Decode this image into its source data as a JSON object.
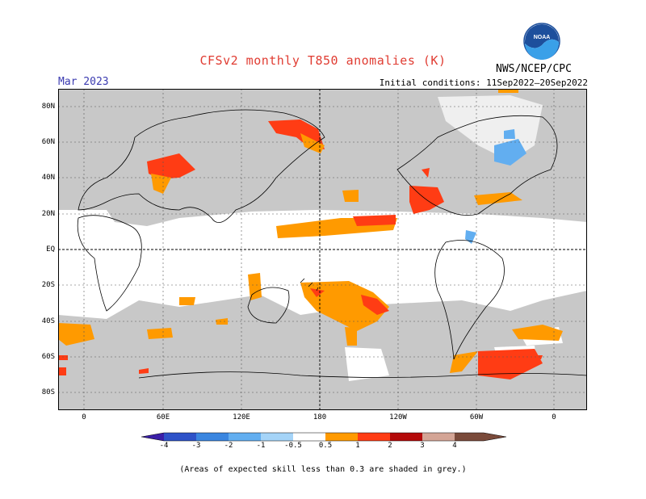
{
  "header": {
    "title": "CFSv2 monthly T850 anomalies (K)",
    "month": "Mar 2023",
    "initial_conditions": "Initial conditions: 11Sep2022–20Sep2022",
    "agency": "NWS/NCEP/CPC",
    "logo_text": "NOAA"
  },
  "axes": {
    "lat_labels": [
      "80N",
      "60N",
      "40N",
      "20N",
      "EQ",
      "20S",
      "40S",
      "60S",
      "80S"
    ],
    "lon_labels": [
      "0",
      "60E",
      "120E",
      "180",
      "120W",
      "60W",
      "0"
    ]
  },
  "colorbar": {
    "labels": [
      "-4",
      "-3",
      "-2",
      "-1",
      "-0.5",
      "0.5",
      "1",
      "2",
      "3",
      "4"
    ],
    "colors": [
      "#3b1fa8",
      "#2e52c8",
      "#3a86e0",
      "#62aef0",
      "#a5d4f8",
      "#ffffff",
      "#ff9a00",
      "#ff3c14",
      "#b40a0a",
      "#d4a596",
      "#7a4a3a"
    ]
  },
  "legend_note": "(Areas of expected skill less than 0.3 are shaded in grey.)",
  "colors": {
    "grey": "#c8c8c8",
    "orange": "#ff9a00",
    "red": "#ff3c14",
    "darkred": "#b40a0a",
    "lightblue": "#62aef0"
  }
}
